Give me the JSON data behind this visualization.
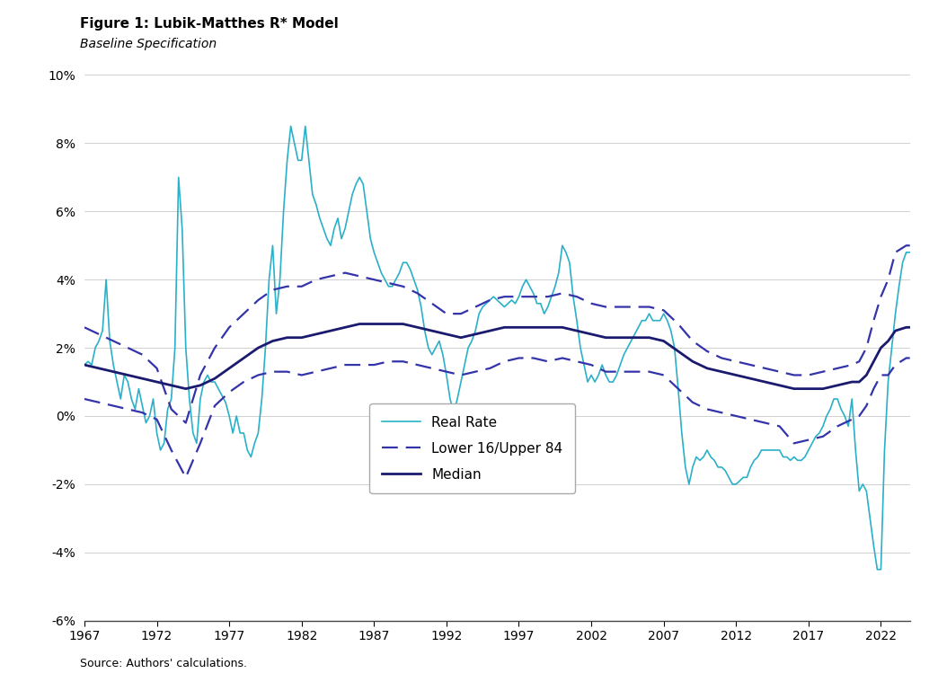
{
  "title": "Figure 1: Lubik-Matthes R* Model",
  "subtitle": "Baseline Specification",
  "source": "Source: Authors' calculations.",
  "ylim": [
    -0.06,
    0.1
  ],
  "yticks": [
    -0.06,
    -0.04,
    -0.02,
    0.0,
    0.02,
    0.04,
    0.06,
    0.08,
    0.1
  ],
  "xticks": [
    1967,
    1972,
    1977,
    1982,
    1987,
    1992,
    1997,
    2002,
    2007,
    2012,
    2017,
    2022
  ],
  "xlim": [
    1967,
    2024
  ],
  "median_color": "#1a1a6e",
  "band_color": "#3333aa",
  "real_rate_color": "#2ab0c8",
  "legend_labels": [
    "Median",
    "Lower 16/Upper 84",
    "Real Rate"
  ],
  "background_color": "#ffffff",
  "grid_color": "#d0d0d0",
  "median_linewidth": 2.0,
  "band_linewidth": 1.6,
  "real_linewidth": 1.2
}
